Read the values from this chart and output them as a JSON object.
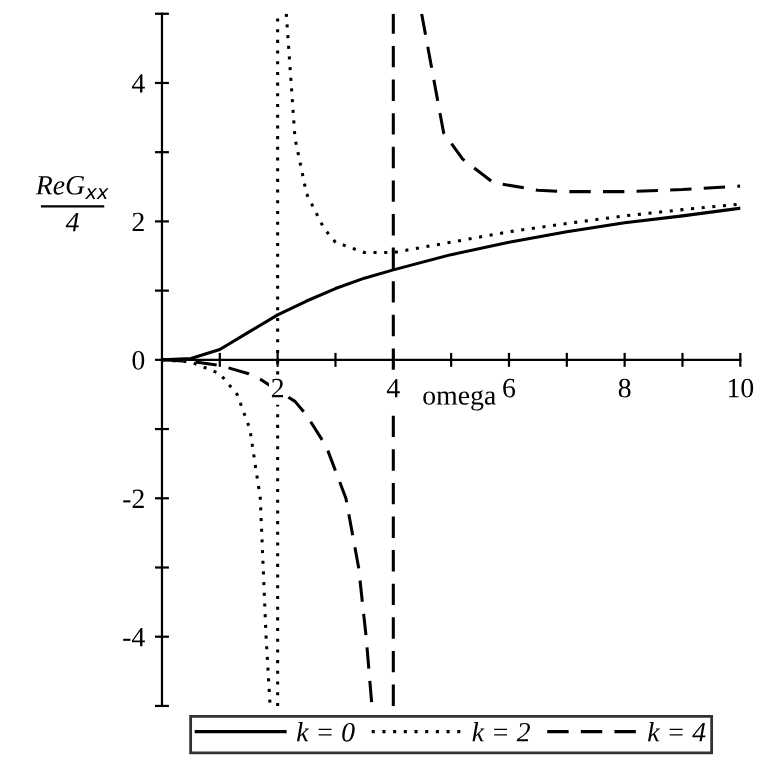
{
  "chart_data": {
    "type": "line",
    "xlabel": "omega",
    "ylabel": "ReG$_{xx}$\n4",
    "xlim": [
      0,
      10
    ],
    "ylim": [
      -5,
      5
    ],
    "xticks": [
      {
        "value": 1,
        "label": null
      },
      2,
      {
        "value": 3,
        "label": null
      },
      4,
      {
        "value": 5,
        "label": null
      },
      6,
      {
        "value": 7,
        "label": null
      },
      8,
      {
        "value": 9,
        "label": null
      },
      10
    ],
    "yticks": [
      {
        "value": -5,
        "label": null
      },
      -4,
      {
        "value": -3,
        "label": null
      },
      -2,
      {
        "value": -1,
        "label": null
      },
      0,
      {
        "value": 1,
        "label": null
      },
      2,
      {
        "value": 3,
        "label": null
      },
      4,
      {
        "value": 5,
        "label": null
      }
    ],
    "grid": false,
    "legend": "bottom",
    "marker": "none",
    "ref_lines": [
      {
        "axis": "x",
        "value": 2,
        "color": "#000000",
        "line_style": "dotted"
      },
      {
        "axis": "x",
        "value": 4,
        "color": "#000000",
        "line_style": "dashed"
      }
    ],
    "series": [
      {
        "name": "k = 0",
        "color": "#000000",
        "line_style": "solid",
        "x": [
          0,
          0.5,
          1,
          1.5,
          2,
          2.5,
          3,
          3.5,
          4,
          5,
          6,
          7,
          8,
          9,
          10
        ],
        "values": [
          0,
          0.02,
          0.15,
          0.4,
          0.65,
          0.85,
          1.03,
          1.18,
          1.3,
          1.52,
          1.7,
          1.85,
          1.98,
          2.08,
          2.19
        ]
      },
      {
        "name": "k = 2",
        "color": "#000000",
        "line_style": "dotted",
        "x": [
          0,
          0.5,
          1,
          1.3,
          1.52,
          1.7,
          1.8,
          1.87,
          2,
          2.15,
          2.3,
          2.5,
          2.8,
          3,
          3.5,
          4,
          5,
          6,
          7,
          8,
          9,
          10
        ],
        "values": [
          0,
          -0.03,
          -0.2,
          -0.5,
          -1,
          -2,
          -4,
          -5,
          null,
          5,
          3.2,
          2.4,
          1.9,
          1.7,
          1.55,
          1.55,
          1.7,
          1.85,
          1.97,
          2.08,
          2.17,
          2.25
        ]
      },
      {
        "name": "k = 4",
        "color": "#000000",
        "line_style": "dashed",
        "x": [
          0,
          0.5,
          1,
          1.5,
          1.7,
          2.3,
          2.5,
          2.84,
          3.18,
          3.4,
          3.53,
          3.63,
          4,
          4.49,
          4.87,
          5.2,
          5.73,
          6.5,
          7,
          8,
          9,
          10
        ],
        "values": [
          0,
          -0.02,
          -0.08,
          -0.2,
          -0.28,
          -0.6,
          -0.8,
          -1.25,
          -2,
          -3,
          -4,
          -5,
          null,
          5,
          3.28,
          2.9,
          2.56,
          2.45,
          2.43,
          2.43,
          2.46,
          2.51
        ]
      }
    ]
  }
}
